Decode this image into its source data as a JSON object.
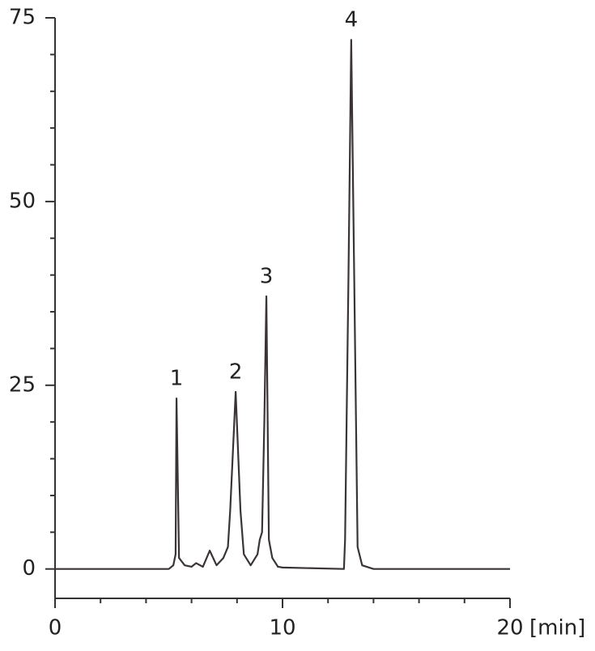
{
  "chart_data": {
    "type": "line",
    "x_label": "[min]",
    "xlim": [
      0,
      20
    ],
    "xticks": [
      0,
      10,
      20
    ],
    "xminorticks": [
      2,
      4,
      6,
      8,
      12,
      14,
      16,
      18
    ],
    "ylim": [
      -4,
      75
    ],
    "yticks": [
      0,
      25,
      50,
      75
    ],
    "yminorticks": [
      5,
      10,
      15,
      20,
      30,
      35,
      40,
      45,
      55,
      60,
      65,
      70
    ],
    "grid": false,
    "series": [
      {
        "color": "#3a3436",
        "x": [
          0,
          5,
          5.2,
          5.3,
          5.34,
          5.45,
          5.7,
          6,
          6.2,
          6.5,
          6.8,
          7.1,
          7.4,
          7.6,
          7.7,
          7.94,
          8.15,
          8.3,
          8.6,
          8.9,
          9.0,
          9.1,
          9.2,
          9.29,
          9.4,
          9.55,
          9.8,
          10,
          12.7,
          12.75,
          12.9,
          13.02,
          13.15,
          13.3,
          13.5,
          14,
          20
        ],
        "values": [
          0,
          0,
          0.5,
          2,
          23.2,
          1.5,
          0.5,
          0.3,
          0.8,
          0.3,
          2.5,
          0.5,
          1.5,
          3,
          8,
          24.1,
          8,
          2,
          0.5,
          2,
          4,
          5,
          20,
          37.1,
          4,
          1.5,
          0.3,
          0.2,
          0,
          4,
          40,
          72,
          40,
          3,
          0.5,
          0,
          0
        ]
      }
    ],
    "annotations": [
      {
        "label": "1",
        "x": 5.34,
        "y": 23.2
      },
      {
        "label": "2",
        "x": 7.94,
        "y": 24.1
      },
      {
        "label": "3",
        "x": 9.29,
        "y": 37.1
      },
      {
        "label": "4",
        "x": 13.02,
        "y": 72
      }
    ]
  }
}
